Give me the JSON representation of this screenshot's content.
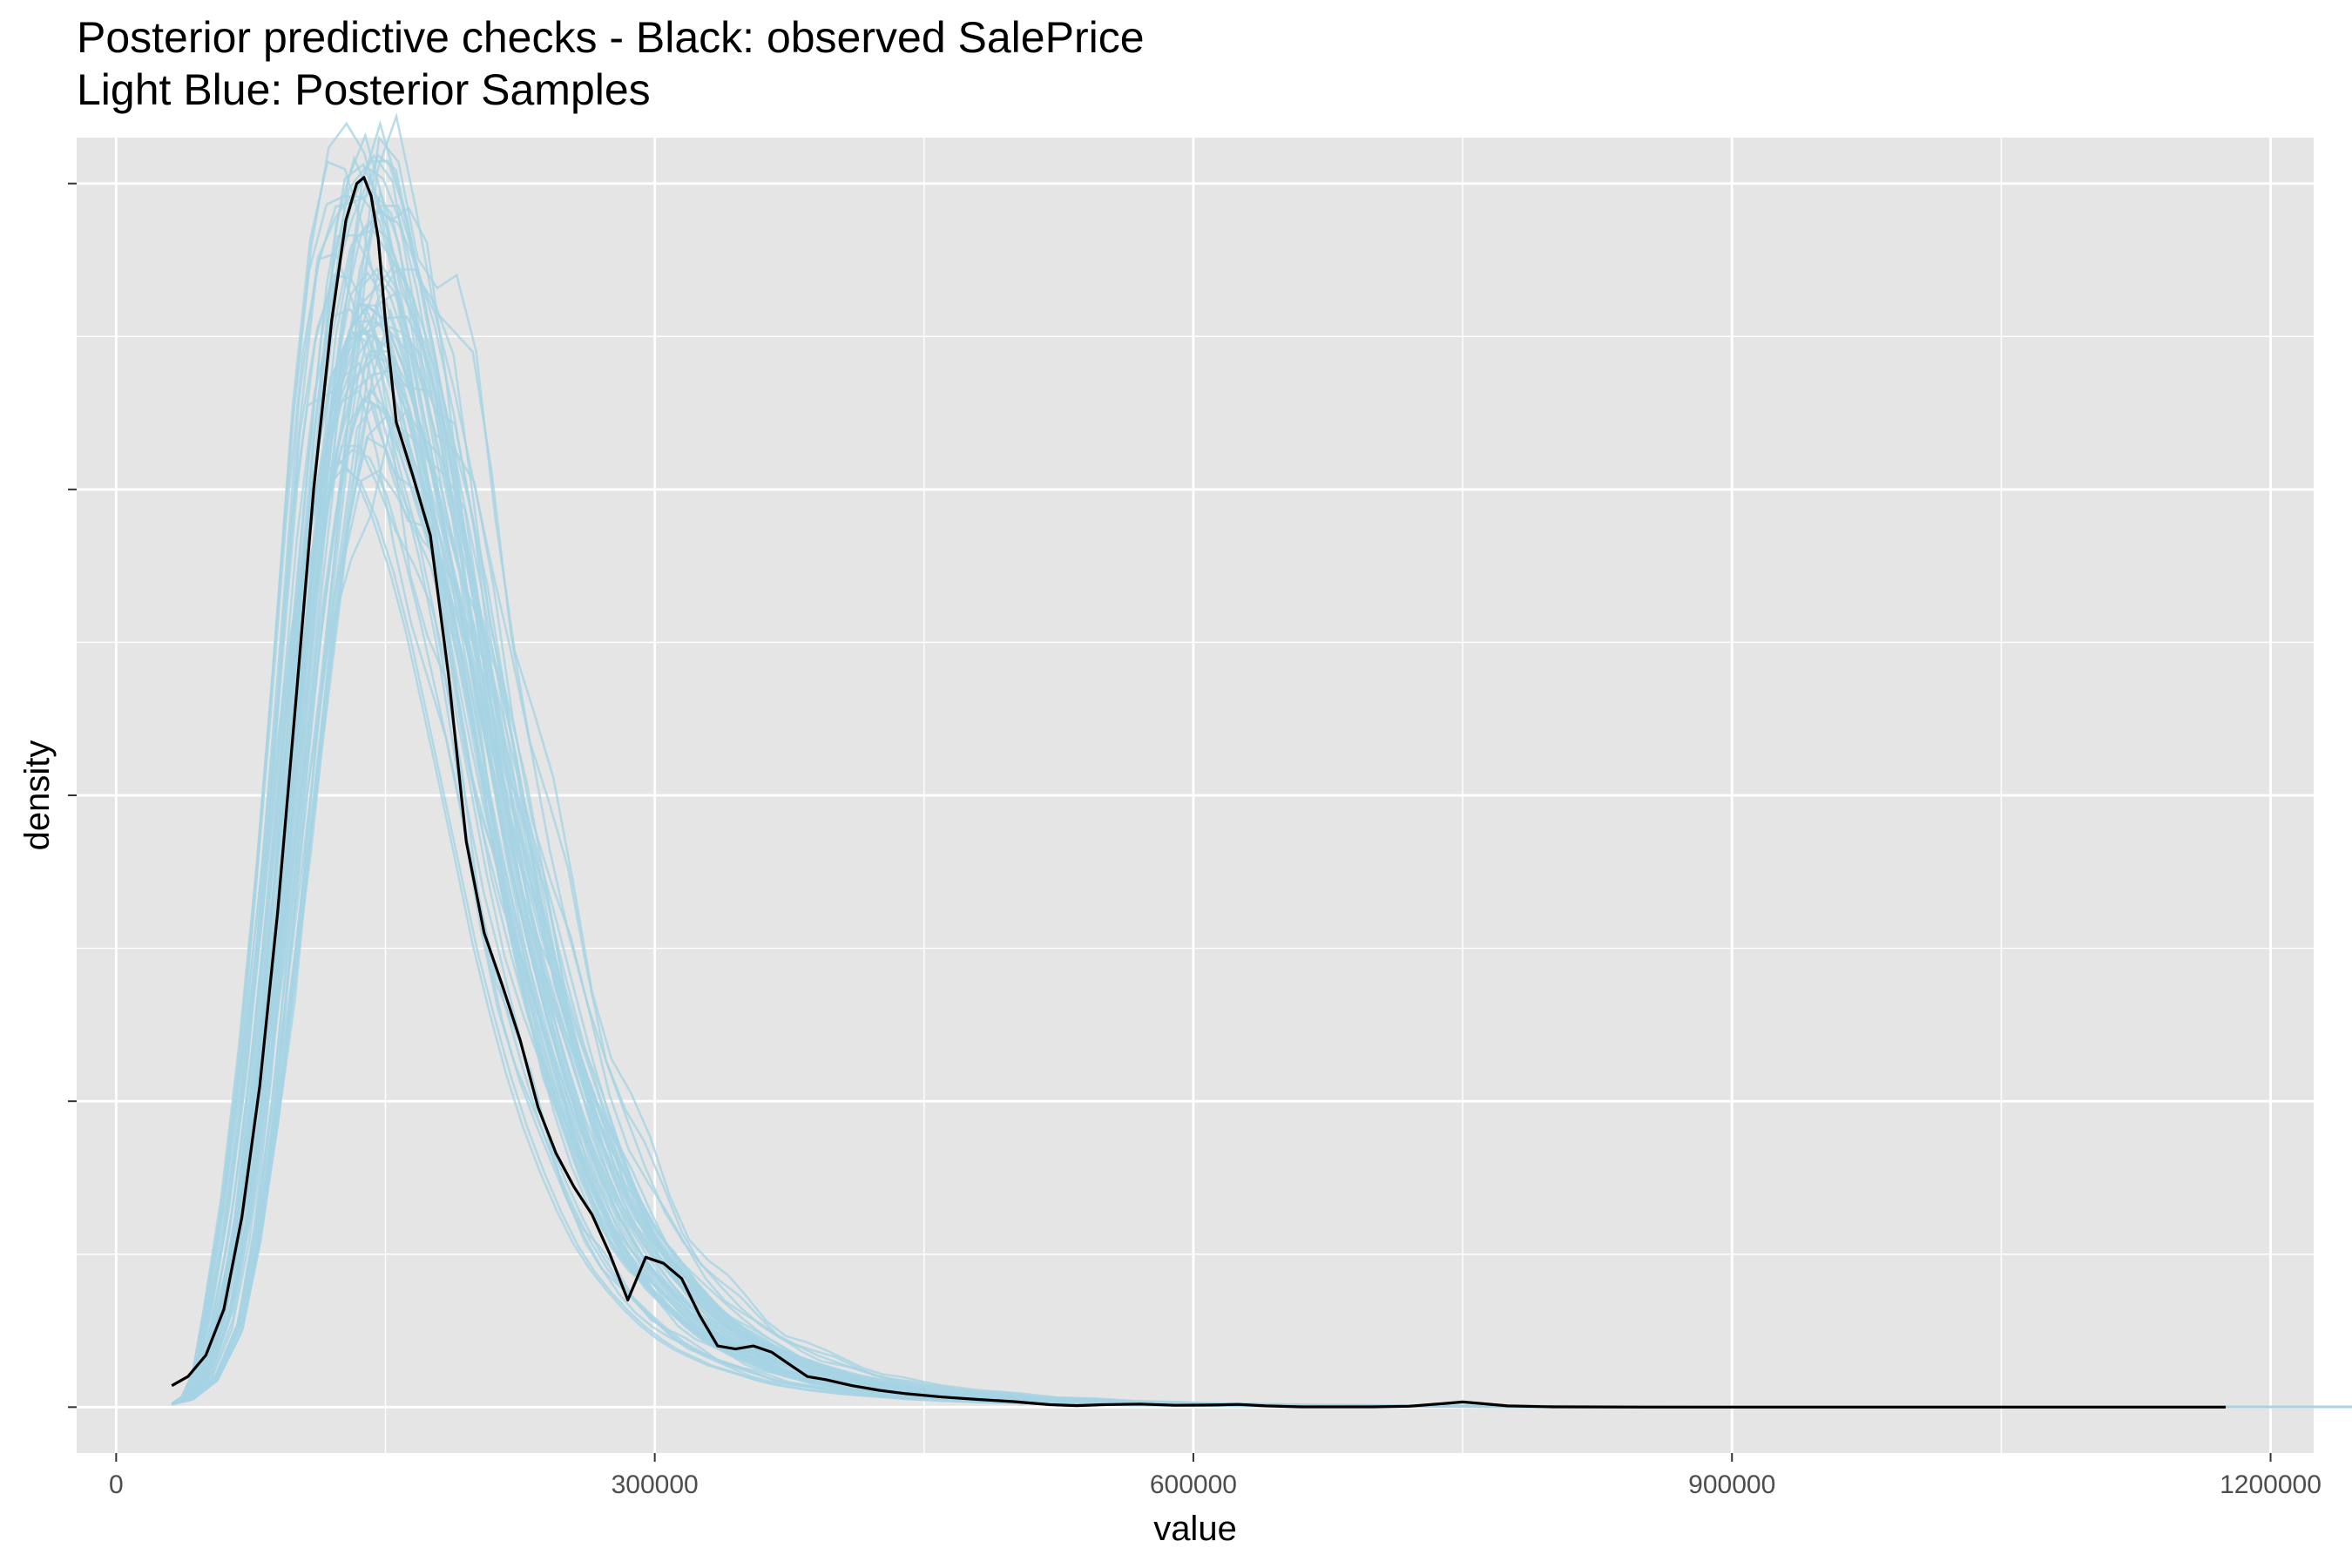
{
  "chart_data": {
    "type": "line",
    "title": "Posterior predictive checks - Black: observed SalePrice",
    "subtitle": "Light Blue: Posterior Samples",
    "xlabel": "value",
    "ylabel": "density",
    "xlim": [
      -22000,
      1224000
    ],
    "ylim": [
      -0.15,
      4.15
    ],
    "x_ticks": [
      0,
      300000,
      600000,
      900000,
      1200000
    ],
    "x_tick_labels": [
      "0",
      "300000",
      "600000",
      "900000",
      "1200000"
    ],
    "y_ticks": [
      0,
      1,
      2,
      3,
      4
    ],
    "grid": true,
    "background": "#e5e5e5",
    "colors": {
      "observed": "#000000",
      "samples": "#a6d3e3",
      "grid": "#ffffff"
    },
    "series": [
      {
        "role": "observed",
        "x": [
          31000,
          40000,
          50000,
          60000,
          70000,
          80000,
          90000,
          100000,
          110000,
          120000,
          128000,
          134000,
          138000,
          142000,
          146000,
          150000,
          156000,
          165000,
          175000,
          185000,
          195000,
          205000,
          215000,
          225000,
          235000,
          245000,
          255000,
          265000,
          275000,
          285000,
          295000,
          305000,
          315000,
          325000,
          335000,
          345000,
          355000,
          365000,
          375000,
          385000,
          395000,
          410000,
          425000,
          440000,
          460000,
          480000,
          500000,
          520000,
          535000,
          550000,
          570000,
          590000,
          610000,
          625000,
          640000,
          660000,
          680000,
          700000,
          720000,
          740000,
          750000,
          760000,
          775000,
          800000,
          850000,
          900000,
          1000000,
          1100000,
          1175000
        ],
        "values": [
          0.07,
          0.1,
          0.17,
          0.32,
          0.62,
          1.05,
          1.62,
          2.3,
          3.0,
          3.55,
          3.88,
          4.0,
          4.02,
          3.96,
          3.82,
          3.55,
          3.22,
          3.05,
          2.85,
          2.4,
          1.85,
          1.55,
          1.38,
          1.2,
          0.98,
          0.83,
          0.72,
          0.63,
          0.5,
          0.35,
          0.49,
          0.47,
          0.42,
          0.3,
          0.2,
          0.19,
          0.2,
          0.18,
          0.14,
          0.1,
          0.09,
          0.07,
          0.055,
          0.044,
          0.033,
          0.025,
          0.018,
          0.008,
          0.005,
          0.008,
          0.01,
          0.006,
          0.007,
          0.009,
          0.004,
          0.001,
          0.001,
          0.001,
          0.003,
          0.012,
          0.017,
          0.012,
          0.004,
          0.001,
          0.0,
          0.0,
          0.0,
          0.0,
          0.0
        ]
      },
      {
        "role": "samples",
        "x": [
          31000,
          40000,
          50000,
          60000,
          70000,
          80000,
          90000,
          100000,
          110000,
          120000,
          130000,
          140000,
          150000,
          160000,
          170000,
          180000,
          190000,
          200000,
          210000,
          220000,
          230000,
          240000,
          250000,
          260000,
          270000,
          280000,
          290000,
          300000,
          310000,
          320000,
          330000,
          340000,
          350000,
          360000,
          370000,
          380000,
          390000,
          400000,
          420000,
          440000,
          460000,
          480000,
          500000,
          520000,
          540000,
          560000,
          580000,
          600000,
          620000,
          640000,
          660000,
          680000,
          700000,
          720000,
          740000,
          760000,
          780000,
          800000,
          850000,
          900000,
          1000000,
          1100000,
          1175000
        ],
        "values": [
          0.01,
          0.03,
          0.1,
          0.28,
          0.6,
          1.05,
          1.6,
          2.2,
          2.8,
          3.25,
          3.52,
          3.6,
          3.55,
          3.4,
          3.2,
          2.95,
          2.65,
          2.35,
          2.05,
          1.75,
          1.5,
          1.27,
          1.07,
          0.9,
          0.75,
          0.62,
          0.52,
          0.44,
          0.37,
          0.31,
          0.26,
          0.22,
          0.19,
          0.16,
          0.14,
          0.12,
          0.1,
          0.085,
          0.065,
          0.05,
          0.04,
          0.03,
          0.024,
          0.019,
          0.015,
          0.012,
          0.01,
          0.008,
          0.007,
          0.006,
          0.005,
          0.004,
          0.004,
          0.003,
          0.003,
          0.003,
          0.002,
          0.002,
          0.001,
          0.001,
          0.001,
          0.001,
          0.001
        ]
      }
    ]
  }
}
